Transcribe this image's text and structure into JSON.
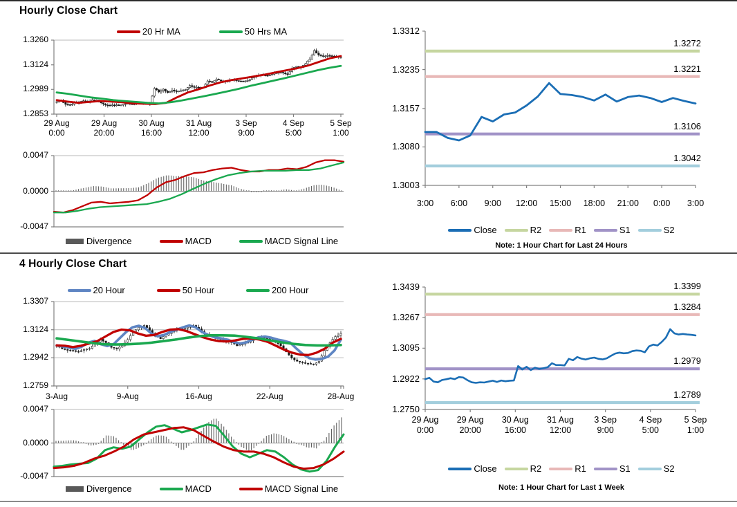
{
  "page": {
    "titles": {
      "hourly": "Hourly Close Chart",
      "four_hourly": "4 Hourly Close Chart"
    }
  },
  "palette": {
    "red": "#c00000",
    "green": "#1aa84f",
    "ma_blue": "#5e85c3",
    "close_blue": "#1b6eb5",
    "r2_green": "#c6d6a0",
    "r1_pink": "#e8b8b7",
    "s1_purple": "#a193c7",
    "s2_blue": "#a3cedd",
    "divergence_gray": "#595959",
    "candle_black": "#1a1a1a"
  },
  "chart_data": [
    {
      "id": "hourly-close",
      "type": "candlestick",
      "title": "Hourly Close Chart",
      "y_ticks": [
        "1.3260",
        "1.3124",
        "1.2989",
        "1.2853"
      ],
      "x_ticks": [
        "29 Aug\n0:00",
        "29 Aug\n20:00",
        "30 Aug\n16:00",
        "31 Aug\n12:00",
        "3 Sep\n9:00",
        "4 Sep\n5:00",
        "5 Sep\n1:00"
      ],
      "legend": [
        {
          "label": "20 Hr MA",
          "color": "#c00000",
          "swatch": "line"
        },
        {
          "label": "50 Hrs MA",
          "color": "#1aa84f",
          "swatch": "line"
        }
      ],
      "candles": {
        "color": "#1a1a1a",
        "closes": [
          1.2921,
          1.2928,
          1.2907,
          1.2903,
          1.2916,
          1.292,
          1.2926,
          1.2921,
          1.2932,
          1.293,
          1.2915,
          1.2903,
          1.29,
          1.2903,
          1.2902,
          1.2907,
          1.2912,
          1.2905,
          1.2913,
          1.2909,
          1.2912,
          1.2913,
          1.2994,
          1.2975,
          1.299,
          1.2972,
          1.2985,
          1.2978,
          1.2982,
          1.2988,
          1.301,
          1.3,
          1.3,
          1.2998,
          1.3035,
          1.3027,
          1.3045,
          1.3036,
          1.3031,
          1.3038,
          1.3042,
          1.3035,
          1.3032,
          1.3038,
          1.3052,
          1.3065,
          1.307,
          1.3066,
          1.3068,
          1.3078,
          1.3082,
          1.308,
          1.3072,
          1.3105,
          1.3115,
          1.311,
          1.313,
          1.3155,
          1.3202,
          1.3178,
          1.3172,
          1.3175,
          1.3172,
          1.317,
          1.3167
        ]
      },
      "series": [
        {
          "name": "20 Hr MA",
          "color": "#c00000",
          "width": 2.8,
          "values": [
            1.293,
            1.2922,
            1.2915,
            1.292,
            1.2925,
            1.2922,
            1.2918,
            1.2912,
            1.291,
            1.2908,
            1.2915,
            1.2945,
            1.2972,
            1.299,
            1.301,
            1.3028,
            1.304,
            1.305,
            1.306,
            1.307,
            1.3082,
            1.3094,
            1.3105,
            1.312,
            1.314,
            1.316,
            1.3172
          ]
        },
        {
          "name": "50 Hrs MA",
          "color": "#1aa84f",
          "width": 2.8,
          "values": [
            1.2972,
            1.2965,
            1.2955,
            1.2945,
            1.2938,
            1.293,
            1.2925,
            1.292,
            1.2915,
            1.2912,
            1.2918,
            1.2928,
            1.294,
            1.2952,
            1.2965,
            1.2978,
            1.2992,
            1.3008,
            1.3022,
            1.3036,
            1.305,
            1.3065,
            1.308,
            1.3095,
            1.3108,
            1.3118
          ]
        }
      ]
    },
    {
      "id": "hourly-macd",
      "type": "macd",
      "y_ticks": [
        "0.0047",
        "0.0000",
        "-0.0047"
      ],
      "legend": [
        {
          "label": "Divergence",
          "color": "#595959",
          "swatch": "bar"
        },
        {
          "label": "MACD",
          "color": "#c00000",
          "swatch": "line"
        },
        {
          "label": "MACD Signal Line",
          "color": "#1aa84f",
          "swatch": "line"
        }
      ],
      "series": [
        {
          "name": "MACD",
          "color": "#c00000",
          "width": 2.3,
          "values": [
            -0.0027,
            -0.0028,
            -0.0025,
            -0.002,
            -0.0015,
            -0.0014,
            -0.0016,
            -0.0015,
            -0.0014,
            -0.0012,
            -0.0005,
            0.0005,
            0.0012,
            0.0015,
            0.002,
            0.0024,
            0.0025,
            0.0028,
            0.003,
            0.0031,
            0.0028,
            0.0026,
            0.0026,
            0.0028,
            0.0028,
            0.003,
            0.0029,
            0.0032,
            0.0038,
            0.0041,
            0.0041,
            0.0039
          ]
        },
        {
          "name": "MACD Signal Line",
          "color": "#1aa84f",
          "width": 2.3,
          "values": [
            -0.0028,
            -0.0028,
            -0.0026,
            -0.0023,
            -0.0021,
            -0.002,
            -0.0019,
            -0.0018,
            -0.0017,
            -0.0014,
            -0.001,
            -0.0004,
            0.0003,
            0.001,
            0.0016,
            0.0021,
            0.0024,
            0.0026,
            0.0027,
            0.0027,
            0.0027,
            0.0028,
            0.0028,
            0.003,
            0.0034,
            0.0038
          ]
        }
      ]
    },
    {
      "id": "day-pivot",
      "type": "pivot",
      "note": "Note: 1 Hour Chart for Last 24 Hours",
      "y_ticks": [
        "1.3312",
        "1.3235",
        "1.3157",
        "1.3080",
        "1.3003"
      ],
      "x_ticks": [
        "3:00",
        "6:00",
        "9:00",
        "12:00",
        "15:00",
        "18:00",
        "21:00",
        "0:00",
        "3:00"
      ],
      "legend": [
        {
          "label": "Close",
          "color": "#1b6eb5",
          "swatch": "line"
        },
        {
          "label": "R2",
          "color": "#c6d6a0",
          "swatch": "line"
        },
        {
          "label": "R1",
          "color": "#e8b8b7",
          "swatch": "line"
        },
        {
          "label": "S1",
          "color": "#a193c7",
          "swatch": "line"
        },
        {
          "label": "S2",
          "color": "#a3cedd",
          "swatch": "line"
        }
      ],
      "hlines": [
        {
          "name": "R2",
          "value": 1.3272,
          "label": "1.3272",
          "color": "#c6d6a0"
        },
        {
          "name": "R1",
          "value": 1.3221,
          "label": "1.3221",
          "color": "#e8b8b7"
        },
        {
          "name": "S1",
          "value": 1.3106,
          "label": "1.3106",
          "color": "#a193c7"
        },
        {
          "name": "S2",
          "value": 1.3042,
          "label": "1.3042",
          "color": "#a3cedd"
        }
      ],
      "series": [
        {
          "name": "Close",
          "color": "#1b6eb5",
          "width": 2.8,
          "values": [
            1.311,
            1.311,
            1.3098,
            1.3093,
            1.3103,
            1.314,
            1.3131,
            1.3145,
            1.3149,
            1.3163,
            1.3181,
            1.3208,
            1.3186,
            1.3184,
            1.318,
            1.3173,
            1.3185,
            1.3171,
            1.318,
            1.3183,
            1.3178,
            1.317,
            1.3178,
            1.3172,
            1.3167
          ]
        }
      ]
    },
    {
      "id": "four-hourly-close",
      "type": "candlestick",
      "title": "4 Hourly Close Chart",
      "y_ticks": [
        "1.3307",
        "1.3124",
        "1.2942",
        "1.2759"
      ],
      "x_ticks": [
        "3-Aug",
        "9-Aug",
        "16-Aug",
        "22-Aug",
        "28-Aug"
      ],
      "legend": [
        {
          "label": "20 Hour",
          "color": "#5e85c3",
          "swatch": "line"
        },
        {
          "label": "50 Hour",
          "color": "#c00000",
          "swatch": "line"
        },
        {
          "label": "200 Hour",
          "color": "#1aa84f",
          "swatch": "line"
        }
      ],
      "candles": {
        "color": "#1a1a1a",
        "closes": [
          1.302,
          1.3,
          1.2992,
          1.2988,
          1.2982,
          1.2996,
          1.3002,
          1.3032,
          1.3062,
          1.304,
          1.301,
          1.3,
          1.3022,
          1.306,
          1.311,
          1.314,
          1.3152,
          1.312,
          1.3082,
          1.3066,
          1.309,
          1.311,
          1.313,
          1.3128,
          1.314,
          1.3152,
          1.313,
          1.31,
          1.3085,
          1.307,
          1.306,
          1.305,
          1.304,
          1.302,
          1.303,
          1.3042,
          1.306,
          1.308,
          1.307,
          1.306,
          1.305,
          1.302,
          1.298,
          1.294,
          1.292,
          1.291,
          1.2905,
          1.29,
          1.292,
          1.299,
          1.304,
          1.308,
          1.31
        ]
      },
      "series": [
        {
          "name": "20 Hour",
          "color": "#5e85c3",
          "width": 3.6,
          "values": [
            1.3022,
            1.3015,
            1.3008,
            1.3,
            1.3015,
            1.304,
            1.3052,
            1.303,
            1.3018,
            1.303,
            1.307,
            1.311,
            1.314,
            1.315,
            1.3135,
            1.31,
            1.3082,
            1.309,
            1.311,
            1.3125,
            1.314,
            1.3152,
            1.314,
            1.311,
            1.309,
            1.3075,
            1.3068,
            1.306,
            1.3045,
            1.3035,
            1.3042,
            1.306,
            1.3075,
            1.308,
            1.3072,
            1.306,
            1.3052,
            1.304,
            1.3,
            1.2965,
            1.294,
            1.293,
            1.2935,
            1.295,
            1.299,
            1.306
          ]
        },
        {
          "name": "50 Hour",
          "color": "#c00000",
          "width": 3.3,
          "values": [
            1.3022,
            1.302,
            1.3012,
            1.302,
            1.3035,
            1.305,
            1.308,
            1.311,
            1.3125,
            1.312,
            1.31,
            1.3085,
            1.309,
            1.311,
            1.3125,
            1.3128,
            1.3115,
            1.3095,
            1.3075,
            1.306,
            1.305,
            1.3048,
            1.3055,
            1.3065,
            1.3068,
            1.306,
            1.3045,
            1.302,
            1.2995,
            1.2975,
            1.2962,
            1.296,
            1.2975,
            1.3,
            1.304,
            1.3065
          ]
        },
        {
          "name": "200 Hour",
          "color": "#1aa84f",
          "width": 3.6,
          "values": [
            1.3068,
            1.3058,
            1.3048,
            1.3038,
            1.303,
            1.3028,
            1.303,
            1.3034,
            1.304,
            1.305,
            1.306,
            1.3072,
            1.3082,
            1.3088,
            1.3088,
            1.3086,
            1.3078,
            1.3068,
            1.3055,
            1.3042,
            1.3032,
            1.3025,
            1.3022,
            1.3022,
            1.3025
          ]
        }
      ]
    },
    {
      "id": "four-hourly-macd",
      "type": "macd",
      "y_ticks": [
        "0.0047",
        "0.0000",
        "-0.0047"
      ],
      "legend": [
        {
          "label": "Divergence",
          "color": "#595959",
          "swatch": "bar"
        },
        {
          "label": "MACD",
          "color": "#1aa84f",
          "swatch": "line"
        },
        {
          "label": "MACD Signal Line",
          "color": "#c00000",
          "swatch": "line"
        }
      ],
      "series": [
        {
          "name": "MACD",
          "color": "#1aa84f",
          "width": 3.0,
          "values": [
            -0.0033,
            -0.0032,
            -0.003,
            -0.0029,
            -0.0028,
            -0.0022,
            -0.001,
            -0.0006,
            -0.0008,
            -0.0005,
            0.0005,
            0.0015,
            0.0023,
            0.0025,
            0.002,
            0.0015,
            0.0018,
            0.0022,
            0.0026,
            0.0024,
            0.001,
            -0.0005,
            -0.0015,
            -0.002,
            -0.0015,
            -0.001,
            -0.0012,
            -0.002,
            -0.003,
            -0.0037,
            -0.004,
            -0.0038,
            -0.0025,
            -0.0005,
            0.0012
          ]
        },
        {
          "name": "MACD Signal Line",
          "color": "#c00000",
          "width": 3.0,
          "values": [
            -0.0035,
            -0.0034,
            -0.0032,
            -0.0028,
            -0.0022,
            -0.0018,
            -0.0012,
            -0.0005,
            0.0005,
            0.0012,
            0.0015,
            0.0018,
            0.0021,
            0.0022,
            0.0018,
            0.001,
            0.0002,
            -0.0005,
            -0.001,
            -0.0012,
            -0.0012,
            -0.0015,
            -0.002,
            -0.0027,
            -0.0033,
            -0.0036,
            -0.0035,
            -0.003,
            -0.0022,
            -0.0012
          ]
        }
      ]
    },
    {
      "id": "week-pivot",
      "type": "pivot",
      "note": "Note: 1 Hour Chart for Last 1 Week",
      "y_ticks": [
        "1.3439",
        "1.3267",
        "1.3095",
        "1.2922",
        "1.2750"
      ],
      "x_ticks": [
        "29 Aug\n0:00",
        "29 Aug\n20:00",
        "30 Aug\n16:00",
        "31 Aug\n12:00",
        "3 Sep\n9:00",
        "4 Sep\n5:00",
        "5 Sep\n1:00"
      ],
      "legend": [
        {
          "label": "Close",
          "color": "#1b6eb5",
          "swatch": "line"
        },
        {
          "label": "R2",
          "color": "#c6d6a0",
          "swatch": "line"
        },
        {
          "label": "R1",
          "color": "#e8b8b7",
          "swatch": "line"
        },
        {
          "label": "S1",
          "color": "#a193c7",
          "swatch": "line"
        },
        {
          "label": "S2",
          "color": "#a3cedd",
          "swatch": "line"
        }
      ],
      "hlines": [
        {
          "name": "R2",
          "value": 1.3399,
          "label": "1.3399",
          "color": "#c6d6a0"
        },
        {
          "name": "R1",
          "value": 1.3284,
          "label": "1.3284",
          "color": "#e8b8b7"
        },
        {
          "name": "S1",
          "value": 1.2979,
          "label": "1.2979",
          "color": "#a193c7"
        },
        {
          "name": "S2",
          "value": 1.2789,
          "label": "1.2789",
          "color": "#a3cedd"
        }
      ],
      "series": [
        {
          "name": "Close",
          "color": "#1b6eb5",
          "width": 2.6,
          "values": [
            1.2921,
            1.2928,
            1.2907,
            1.2903,
            1.2916,
            1.292,
            1.2926,
            1.2921,
            1.2932,
            1.293,
            1.2915,
            1.2903,
            1.29,
            1.2903,
            1.2902,
            1.2907,
            1.2912,
            1.2905,
            1.2913,
            1.2909,
            1.2912,
            1.2913,
            1.2994,
            1.2975,
            1.299,
            1.2972,
            1.2985,
            1.2978,
            1.2982,
            1.2988,
            1.301,
            1.3,
            1.3,
            1.2998,
            1.3035,
            1.3027,
            1.3045,
            1.3036,
            1.3031,
            1.3038,
            1.3042,
            1.3035,
            1.3032,
            1.3038,
            1.3052,
            1.3065,
            1.307,
            1.3066,
            1.3068,
            1.3078,
            1.3082,
            1.308,
            1.3072,
            1.3105,
            1.3115,
            1.311,
            1.313,
            1.3155,
            1.3202,
            1.3178,
            1.3172,
            1.3175,
            1.3172,
            1.317,
            1.3167
          ]
        }
      ]
    }
  ]
}
